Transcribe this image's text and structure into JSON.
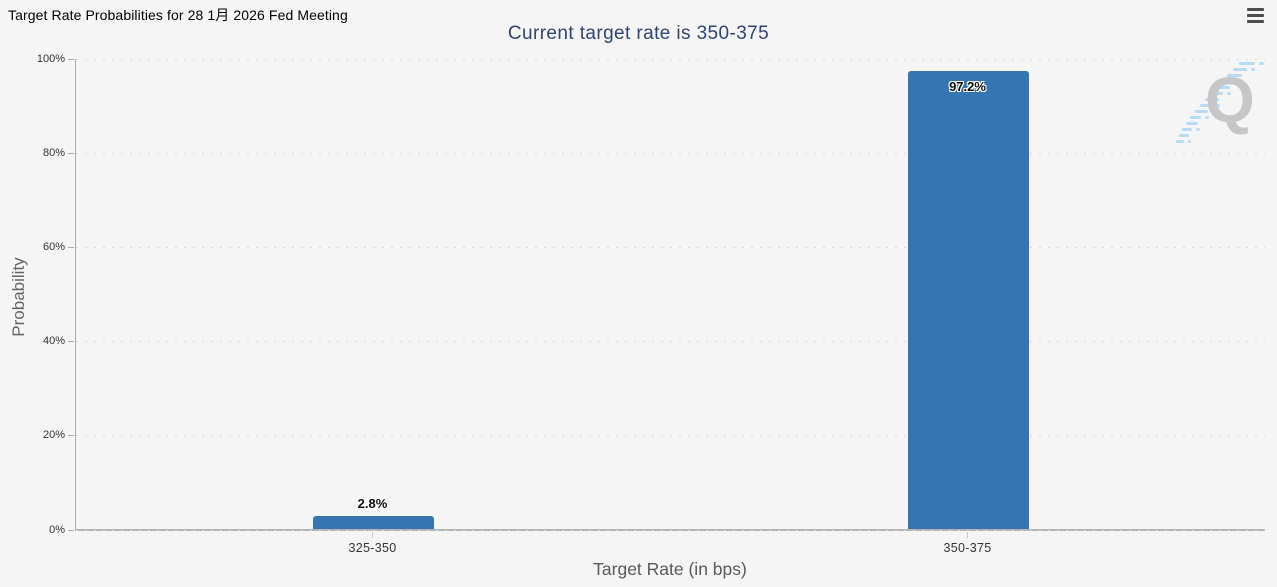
{
  "header": {
    "title": "Target Rate Probabilities for 28 1月 2026 Fed Meeting",
    "subtitle": "Current target rate is 350-375"
  },
  "menu": {
    "icon": "hamburger-icon"
  },
  "watermark": {
    "letter": "Q",
    "name": "quikstrike-logo"
  },
  "colors": {
    "background": "#f5f5f6",
    "bar": "#3576b2",
    "subtitle": "#2f4476",
    "gridline": "#d8d8d8",
    "axis_line": "#ababab",
    "axis_text": "#333333",
    "axis_title_text": "#666666",
    "watermark_gray": "#c6c6c8",
    "watermark_blue": "#b5dcf4"
  },
  "chart_data": {
    "type": "bar",
    "title": "Target Rate Probabilities for 28 1月 2026 Fed Meeting",
    "subtitle": "Current target rate is 350-375",
    "categories": [
      "325-350",
      "350-375"
    ],
    "values": [
      2.8,
      97.2
    ],
    "value_labels": [
      "2.8%",
      "97.2%"
    ],
    "xlabel": "Target Rate (in bps)",
    "ylabel": "Probability",
    "ylim": [
      0,
      100
    ],
    "ytick_values": [
      0,
      20,
      40,
      60,
      80,
      100
    ],
    "ytick_labels": [
      "0%",
      "20%",
      "40%",
      "60%",
      "80%",
      "100%"
    ],
    "grid": "horizontal-dotted",
    "legend": "none",
    "bar_color": "#3576b2"
  }
}
